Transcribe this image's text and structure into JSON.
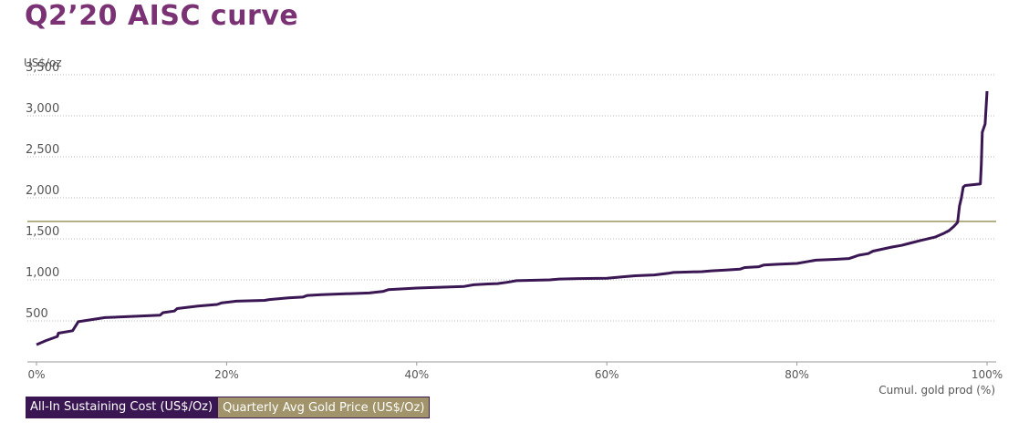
{
  "page": {
    "title": "Q2’20 AISC curve"
  },
  "chart_data": {
    "type": "line",
    "title": "Q2’20 AISC curve",
    "ylabel": "US$/oz",
    "xlabel": "Cumul. gold prod (%)",
    "xlim": [
      0,
      100
    ],
    "ylim": [
      0,
      3500
    ],
    "x_ticks": [
      0,
      20,
      40,
      60,
      80,
      100
    ],
    "x_tick_labels": [
      "0%",
      "20%",
      "40%",
      "60%",
      "80%",
      "100%"
    ],
    "y_ticks": [
      500,
      1000,
      1500,
      2000,
      2500,
      3000,
      3500
    ],
    "y_tick_labels": [
      "500",
      "1,000",
      "1,500",
      "2,000",
      "2,500",
      "3,000",
      "3,500"
    ],
    "grid": "horizontal dotted",
    "legend_position": "bottom-left",
    "colors": {
      "aisc": "#3a1753",
      "gold": "#9c9460",
      "title": "#7a3275"
    },
    "series": [
      {
        "name": "All-In Sustaining Cost (US$/Oz)",
        "type": "step-line",
        "x": [
          0,
          1,
          2.2,
          2.3,
          3.8,
          4.4,
          5.5,
          7.2,
          10,
          13,
          13.3,
          14.5,
          14.8,
          17,
          19,
          19.5,
          21,
          24,
          24.5,
          26.5,
          28,
          28.5,
          30,
          32.5,
          35,
          36.5,
          37,
          38.5,
          40,
          41,
          42.5,
          45,
          46,
          47.5,
          48.5,
          49.5,
          50,
          50.5,
          52.5,
          54,
          55,
          57,
          60,
          62,
          63,
          65,
          66.5,
          67,
          70,
          71,
          72.5,
          74,
          74.5,
          76,
          76.5,
          78,
          80,
          81,
          82,
          84,
          85.5,
          86,
          86.5,
          87.5,
          88,
          90,
          91,
          92,
          93,
          94.5,
          95.5,
          96,
          96.5,
          96.9,
          97.1,
          97.3,
          97.5,
          97.7,
          98.5,
          99.3,
          99.4,
          99.5,
          99.8,
          100
        ],
        "values": [
          210,
          260,
          310,
          350,
          380,
          490,
          510,
          540,
          555,
          570,
          600,
          620,
          650,
          680,
          700,
          720,
          740,
          750,
          760,
          780,
          790,
          810,
          820,
          830,
          840,
          860,
          880,
          890,
          900,
          905,
          910,
          920,
          940,
          950,
          955,
          970,
          980,
          990,
          995,
          1000,
          1010,
          1015,
          1020,
          1040,
          1050,
          1060,
          1080,
          1090,
          1100,
          1110,
          1120,
          1130,
          1150,
          1160,
          1180,
          1190,
          1200,
          1220,
          1240,
          1250,
          1260,
          1280,
          1300,
          1320,
          1350,
          1400,
          1420,
          1450,
          1480,
          1520,
          1570,
          1600,
          1650,
          1700,
          1900,
          2000,
          2130,
          2150,
          2160,
          2170,
          2400,
          2800,
          2900,
          3300
        ]
      },
      {
        "name": "Quarterly Avg Gold Price (US$/Oz)",
        "type": "horizontal-line",
        "value": 1712
      }
    ]
  }
}
